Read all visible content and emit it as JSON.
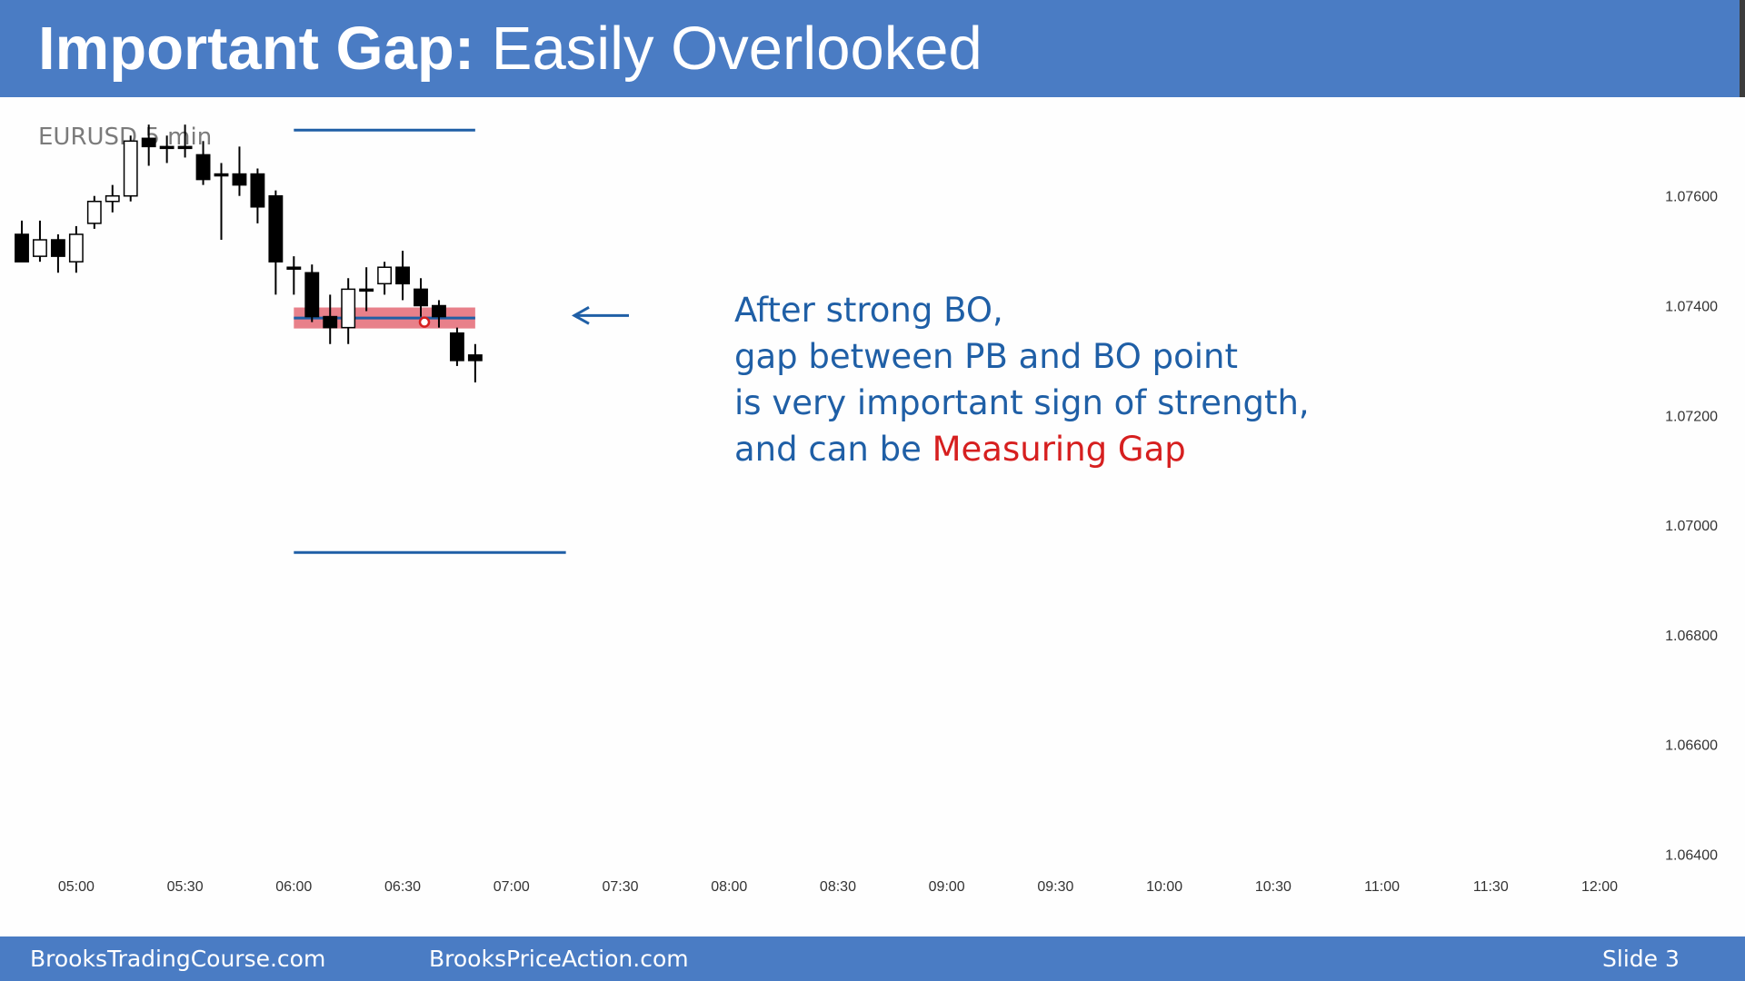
{
  "slide": {
    "title_bold": "Important Gap:",
    "title_rest": "Easily Overlooked",
    "subtitle": "EURUSD 5 min",
    "callout": {
      "line1": "After strong BO,",
      "line2": "gap between PB and BO point",
      "line3": "is very important sign of strength,",
      "line4_prefix": "and can be ",
      "line4_highlight": "Measuring Gap"
    },
    "footer": {
      "left": "BrooksTradingCourse.com",
      "center": "BrooksPriceAction.com",
      "right": "Slide  3"
    },
    "colors": {
      "header_bg": "#4a7cc4",
      "callout_text": "#1f5fa6",
      "highlight_red": "#d61f1f",
      "gap_band": "#e8808a",
      "level_line": "#1f5fa6"
    },
    "icons": [
      "left-arrow-icon"
    ]
  },
  "chart_data": {
    "type": "candlestick",
    "symbol": "EURUSD",
    "timeframe": "5 min",
    "x_ticks": [
      "05:00",
      "05:30",
      "06:00",
      "06:30",
      "07:00",
      "07:30",
      "08:00",
      "08:30",
      "09:00",
      "09:30",
      "10:00",
      "10:30",
      "11:00",
      "11:30",
      "12:00"
    ],
    "y_ticks": [
      "1.07600",
      "1.07400",
      "1.07200",
      "1.07000",
      "1.06800",
      "1.06600",
      "1.06400"
    ],
    "xlim": [
      "04:45",
      "12:05"
    ],
    "ylim": [
      1.0625,
      1.0778
    ],
    "candles": [
      {
        "time": "04:45",
        "open": 1.0753,
        "high": 1.07555,
        "low": 1.0749,
        "close": 1.0748
      },
      {
        "time": "04:50",
        "open": 1.0749,
        "high": 1.07555,
        "low": 1.0748,
        "close": 1.0752
      },
      {
        "time": "04:55",
        "open": 1.0752,
        "high": 1.0753,
        "low": 1.0746,
        "close": 1.0749
      },
      {
        "time": "05:00",
        "open": 1.0748,
        "high": 1.07545,
        "low": 1.0746,
        "close": 1.0753
      },
      {
        "time": "05:05",
        "open": 1.0755,
        "high": 1.076,
        "low": 1.0754,
        "close": 1.0759
      },
      {
        "time": "05:10",
        "open": 1.0759,
        "high": 1.0762,
        "low": 1.0757,
        "close": 1.076
      },
      {
        "time": "05:15",
        "open": 1.076,
        "high": 1.0771,
        "low": 1.0759,
        "close": 1.077
      },
      {
        "time": "05:20",
        "open": 1.07705,
        "high": 1.0773,
        "low": 1.07655,
        "close": 1.0769
      },
      {
        "time": "05:25",
        "open": 1.0769,
        "high": 1.0771,
        "low": 1.0766,
        "close": 1.0769
      },
      {
        "time": "05:30",
        "open": 1.0769,
        "high": 1.0773,
        "low": 1.0767,
        "close": 1.0769
      },
      {
        "time": "05:35",
        "open": 1.07675,
        "high": 1.077,
        "low": 1.0762,
        "close": 1.0763
      },
      {
        "time": "05:40",
        "open": 1.0764,
        "high": 1.0766,
        "low": 1.0752,
        "close": 1.0764
      },
      {
        "time": "05:45",
        "open": 1.0764,
        "high": 1.0769,
        "low": 1.076,
        "close": 1.0762
      },
      {
        "time": "05:50",
        "open": 1.0764,
        "high": 1.0765,
        "low": 1.0755,
        "close": 1.0758
      },
      {
        "time": "05:55",
        "open": 1.076,
        "high": 1.0761,
        "low": 1.0742,
        "close": 1.0748
      },
      {
        "time": "06:00",
        "open": 1.0747,
        "high": 1.0749,
        "low": 1.0742,
        "close": 1.0747
      },
      {
        "time": "06:05",
        "open": 1.0746,
        "high": 1.07475,
        "low": 1.0737,
        "close": 1.0738
      },
      {
        "time": "06:10",
        "open": 1.0738,
        "high": 1.0742,
        "low": 1.0733,
        "close": 1.0736
      },
      {
        "time": "06:15",
        "open": 1.0736,
        "high": 1.0745,
        "low": 1.0733,
        "close": 1.0743
      },
      {
        "time": "06:20",
        "open": 1.0743,
        "high": 1.0747,
        "low": 1.0739,
        "close": 1.0743
      },
      {
        "time": "06:25",
        "open": 1.0744,
        "high": 1.0748,
        "low": 1.0742,
        "close": 1.0747
      },
      {
        "time": "06:30",
        "open": 1.0747,
        "high": 1.075,
        "low": 1.0741,
        "close": 1.0744
      },
      {
        "time": "06:35",
        "open": 1.0743,
        "high": 1.0745,
        "low": 1.0738,
        "close": 1.074
      },
      {
        "time": "06:40",
        "open": 1.074,
        "high": 1.0741,
        "low": 1.0736,
        "close": 1.0738
      },
      {
        "time": "06:45",
        "open": 1.0735,
        "high": 1.0736,
        "low": 1.0729,
        "close": 1.073
      },
      {
        "time": "06:50",
        "open": 1.0731,
        "high": 1.0733,
        "low": 1.0726,
        "close": 1.073
      }
    ],
    "annotations": {
      "gap_band": {
        "low": 1.07365,
        "high": 1.0739,
        "from": "06:00",
        "to": "06:50"
      },
      "bo_point_marker": {
        "time": "06:35",
        "price": 1.0737
      },
      "level_top": {
        "price": 1.0772,
        "from": "06:00",
        "to": "06:50"
      },
      "level_bottom": {
        "price": 1.0695,
        "from": "06:00",
        "to": "07:15"
      },
      "arrow_price": 1.07382
    }
  }
}
